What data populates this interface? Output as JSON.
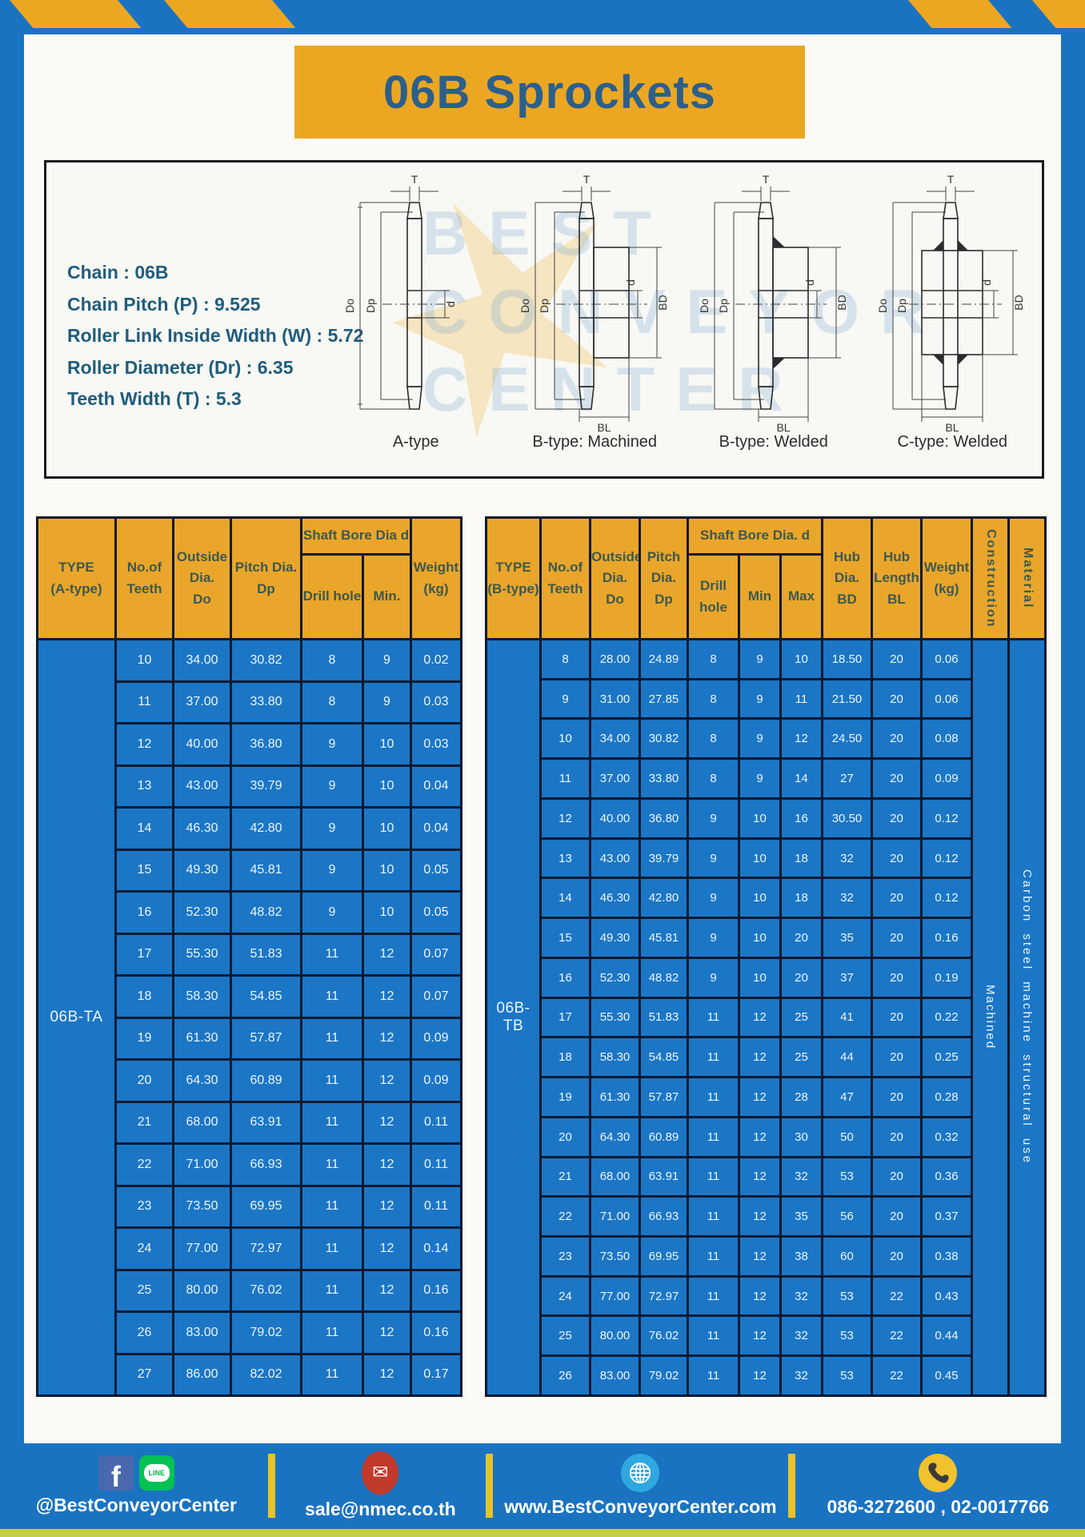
{
  "title": "06B Sprockets",
  "colors": {
    "frame_blue": "#1a73c1",
    "gold": "#eca722",
    "table_header_gold": "#e9a62a",
    "table_body_blue": "#1b76c6",
    "grid_border": "#0c1a30",
    "footer_divider_yellow": "#e9c227"
  },
  "specs": {
    "lines": [
      "Chain : 06B",
      "Chain Pitch (P) : 9.525",
      "Roller Link Inside Width (W) : 5.72",
      "Roller Diameter (Dr) : 6.35",
      "Teeth Width (T) : 5.3"
    ]
  },
  "drawings": {
    "captions": [
      "A-type",
      "B-type: Machined",
      "B-type: Welded",
      "C-type: Welded"
    ],
    "dims": {
      "t": "T",
      "do": "Do",
      "dp": "Dp",
      "d": "d",
      "bd": "BD",
      "bl": "BL"
    },
    "watermark": "BEST CONVEYOR CENTER"
  },
  "tableA": {
    "type_label": "06B-TA",
    "headers": {
      "type": "TYPE\n(A-type)",
      "teeth": "No.of\nTeeth",
      "outside": "Outside\nDia.\nDo",
      "pitch": "Pitch Dia.\nDp",
      "shaft": "Shaft Bore Dia d",
      "drill": "Drill hole",
      "min": "Min.",
      "weight": "Weight\n(kg)"
    },
    "rows": [
      [
        "10",
        "34.00",
        "30.82",
        "8",
        "9",
        "0.02"
      ],
      [
        "11",
        "37.00",
        "33.80",
        "8",
        "9",
        "0.03"
      ],
      [
        "12",
        "40.00",
        "36.80",
        "9",
        "10",
        "0.03"
      ],
      [
        "13",
        "43.00",
        "39.79",
        "9",
        "10",
        "0.04"
      ],
      [
        "14",
        "46.30",
        "42.80",
        "9",
        "10",
        "0.04"
      ],
      [
        "15",
        "49.30",
        "45.81",
        "9",
        "10",
        "0.05"
      ],
      [
        "16",
        "52.30",
        "48.82",
        "9",
        "10",
        "0.05"
      ],
      [
        "17",
        "55.30",
        "51.83",
        "11",
        "12",
        "0.07"
      ],
      [
        "18",
        "58.30",
        "54.85",
        "11",
        "12",
        "0.07"
      ],
      [
        "19",
        "61.30",
        "57.87",
        "11",
        "12",
        "0.09"
      ],
      [
        "20",
        "64.30",
        "60.89",
        "11",
        "12",
        "0.09"
      ],
      [
        "21",
        "68.00",
        "63.91",
        "11",
        "12",
        "0.11"
      ],
      [
        "22",
        "71.00",
        "66.93",
        "11",
        "12",
        "0.11"
      ],
      [
        "23",
        "73.50",
        "69.95",
        "11",
        "12",
        "0.11"
      ],
      [
        "24",
        "77.00",
        "72.97",
        "11",
        "12",
        "0.14"
      ],
      [
        "25",
        "80.00",
        "76.02",
        "11",
        "12",
        "0.16"
      ],
      [
        "26",
        "83.00",
        "79.02",
        "11",
        "12",
        "0.16"
      ],
      [
        "27",
        "86.00",
        "82.02",
        "11",
        "12",
        "0.17"
      ]
    ]
  },
  "tableB": {
    "type_label": "06B-TB",
    "construction": "Machined",
    "material": "Carbon steel machine structural use",
    "headers": {
      "type": "TYPE\n(B-type)",
      "teeth": "No.of\nTeeth",
      "outside": "Outside\nDia.\nDo",
      "pitch": "Pitch\nDia.\nDp",
      "shaft": "Shaft Bore Dia. d",
      "drill": "Drill hole",
      "min": "Min",
      "max": "Max",
      "hub_dia": "Hub\nDia.\nBD",
      "hub_len": "Hub\nLength\nBL",
      "weight": "Weight\n(kg)",
      "construction": "Construction",
      "material": "Material"
    },
    "rows": [
      [
        "8",
        "28.00",
        "24.89",
        "8",
        "9",
        "10",
        "18.50",
        "20",
        "0.06"
      ],
      [
        "9",
        "31.00",
        "27.85",
        "8",
        "9",
        "11",
        "21.50",
        "20",
        "0.06"
      ],
      [
        "10",
        "34.00",
        "30.82",
        "8",
        "9",
        "12",
        "24.50",
        "20",
        "0.08"
      ],
      [
        "11",
        "37.00",
        "33.80",
        "8",
        "9",
        "14",
        "27",
        "20",
        "0.09"
      ],
      [
        "12",
        "40.00",
        "36.80",
        "9",
        "10",
        "16",
        "30.50",
        "20",
        "0.12"
      ],
      [
        "13",
        "43.00",
        "39.79",
        "9",
        "10",
        "18",
        "32",
        "20",
        "0.12"
      ],
      [
        "14",
        "46.30",
        "42.80",
        "9",
        "10",
        "18",
        "32",
        "20",
        "0.12"
      ],
      [
        "15",
        "49.30",
        "45.81",
        "9",
        "10",
        "20",
        "35",
        "20",
        "0.16"
      ],
      [
        "16",
        "52.30",
        "48.82",
        "9",
        "10",
        "20",
        "37",
        "20",
        "0.19"
      ],
      [
        "17",
        "55.30",
        "51.83",
        "11",
        "12",
        "25",
        "41",
        "20",
        "0.22"
      ],
      [
        "18",
        "58.30",
        "54.85",
        "11",
        "12",
        "25",
        "44",
        "20",
        "0.25"
      ],
      [
        "19",
        "61.30",
        "57.87",
        "11",
        "12",
        "28",
        "47",
        "20",
        "0.28"
      ],
      [
        "20",
        "64.30",
        "60.89",
        "11",
        "12",
        "30",
        "50",
        "20",
        "0.32"
      ],
      [
        "21",
        "68.00",
        "63.91",
        "11",
        "12",
        "32",
        "53",
        "20",
        "0.36"
      ],
      [
        "22",
        "71.00",
        "66.93",
        "11",
        "12",
        "35",
        "56",
        "20",
        "0.37"
      ],
      [
        "23",
        "73.50",
        "69.95",
        "11",
        "12",
        "38",
        "60",
        "20",
        "0.38"
      ],
      [
        "24",
        "77.00",
        "72.97",
        "11",
        "12",
        "32",
        "53",
        "22",
        "0.43"
      ],
      [
        "25",
        "80.00",
        "76.02",
        "11",
        "12",
        "32",
        "53",
        "22",
        "0.44"
      ],
      [
        "26",
        "83.00",
        "79.02",
        "11",
        "12",
        "32",
        "53",
        "22",
        "0.45"
      ]
    ]
  },
  "footer": {
    "social": "@BestConveyorCenter",
    "email": "sale@nmec.co.th",
    "website": "www.BestConveyorCenter.com",
    "phones": "086-3272600 , 02-0017766",
    "facebook_glyph": "f",
    "line_text": "LINE",
    "email_glyph": "✉"
  }
}
